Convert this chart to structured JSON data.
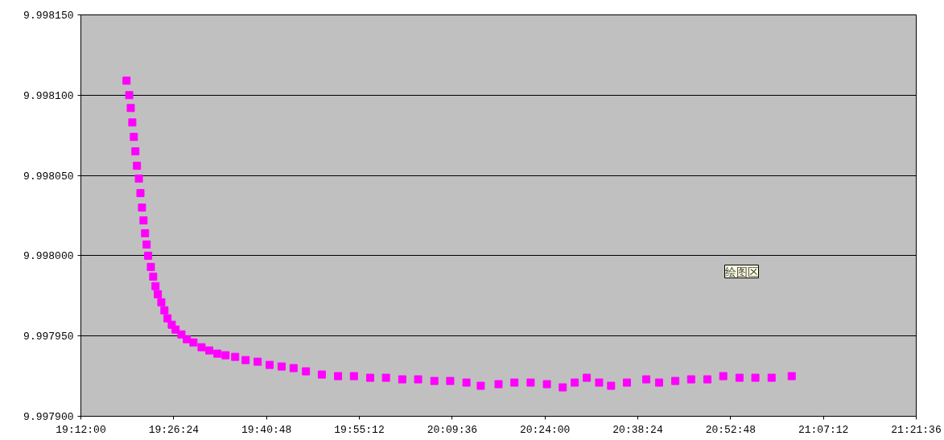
{
  "chart_data": {
    "type": "scatter",
    "marker": "square",
    "grid": "y",
    "xlim": [
      19.2,
      21.36
    ],
    "xticks": [
      {
        "value": 19.2,
        "label": "19:12:00"
      },
      {
        "value": 19.44,
        "label": "19:26:24"
      },
      {
        "value": 19.68,
        "label": "19:40:48"
      },
      {
        "value": 19.92,
        "label": "19:55:12"
      },
      {
        "value": 20.16,
        "label": "20:09:36"
      },
      {
        "value": 20.4,
        "label": "20:24:00"
      },
      {
        "value": 20.64,
        "label": "20:38:24"
      },
      {
        "value": 20.88,
        "label": "20:52:48"
      },
      {
        "value": 21.12,
        "label": "21:07:12"
      },
      {
        "value": 21.36,
        "label": "21:21:36"
      }
    ],
    "ylim": [
      9.9979,
      9.99815
    ],
    "yticks": [
      {
        "value": 9.9979,
        "label": "9.997900"
      },
      {
        "value": 9.99795,
        "label": "9.997950"
      },
      {
        "value": 9.998,
        "label": "9.998000"
      },
      {
        "value": 9.99805,
        "label": "9.998050"
      },
      {
        "value": 9.9981,
        "label": "9.998100"
      },
      {
        "value": 9.99815,
        "label": "9.998150"
      }
    ],
    "annotations": [
      "绘图区"
    ],
    "series": [
      {
        "color": "#ff00ff",
        "x": [
          19.318,
          19.325,
          19.329,
          19.333,
          19.337,
          19.341,
          19.345,
          19.35,
          19.354,
          19.358,
          19.362,
          19.366,
          19.37,
          19.374,
          19.381,
          19.387,
          19.393,
          19.399,
          19.408,
          19.416,
          19.424,
          19.435,
          19.445,
          19.46,
          19.474,
          19.491,
          19.512,
          19.532,
          19.553,
          19.574,
          19.599,
          19.626,
          19.657,
          19.688,
          19.719,
          19.75,
          19.782,
          19.823,
          19.865,
          19.906,
          19.948,
          19.989,
          20.031,
          20.072,
          20.114,
          20.155,
          20.197,
          20.234,
          20.28,
          20.321,
          20.363,
          20.405,
          20.446,
          20.477,
          20.508,
          20.54,
          20.571,
          20.612,
          20.662,
          20.695,
          20.737,
          20.778,
          20.82,
          20.861,
          20.903,
          20.944,
          20.986,
          21.038
        ],
        "values": [
          9.998109,
          9.9981,
          9.998092,
          9.998083,
          9.998074,
          9.998065,
          9.998056,
          9.998048,
          9.998039,
          9.99803,
          9.998022,
          9.998014,
          9.998007,
          9.998,
          9.997993,
          9.997987,
          9.997981,
          9.997976,
          9.997971,
          9.997966,
          9.997961,
          9.997957,
          9.997954,
          9.997951,
          9.997948,
          9.997946,
          9.997943,
          9.997941,
          9.997939,
          9.997938,
          9.997937,
          9.997935,
          9.997934,
          9.997932,
          9.997931,
          9.99793,
          9.997928,
          9.997926,
          9.997925,
          9.997925,
          9.997924,
          9.997924,
          9.997923,
          9.997923,
          9.997922,
          9.997922,
          9.997921,
          9.997919,
          9.99792,
          9.997921,
          9.997921,
          9.99792,
          9.997918,
          9.997921,
          9.997924,
          9.997921,
          9.997919,
          9.997921,
          9.997923,
          9.997921,
          9.997922,
          9.997923,
          9.997923,
          9.997925,
          9.997924,
          9.997924,
          9.997924,
          9.997925
        ]
      }
    ]
  }
}
